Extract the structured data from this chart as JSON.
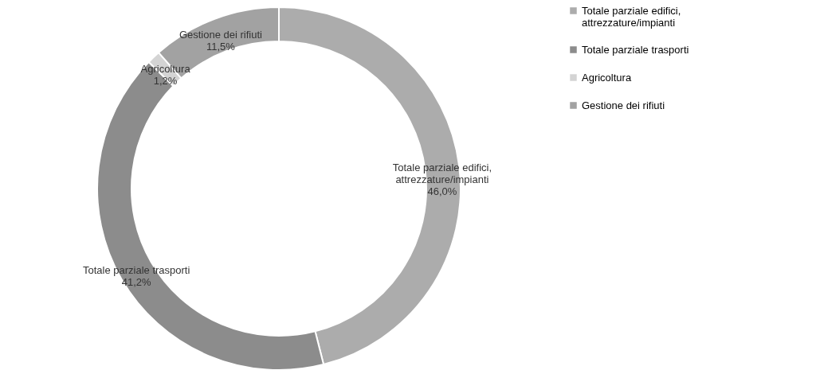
{
  "chart_data": {
    "type": "donut",
    "categories": [
      "Totale parziale edifici, attrezzature/impianti",
      "Totale parziale trasporti",
      "Agricoltura",
      "Gestione dei rifiuti"
    ],
    "values": [
      46.0,
      41.2,
      1.2,
      11.5
    ],
    "value_labels": [
      "46,0%",
      "41,2%",
      "1,2%",
      "11,5%"
    ],
    "colors": [
      "#acacac",
      "#8c8c8c",
      "#d4d4d4",
      "#a2a2a2"
    ],
    "legend": "right"
  }
}
